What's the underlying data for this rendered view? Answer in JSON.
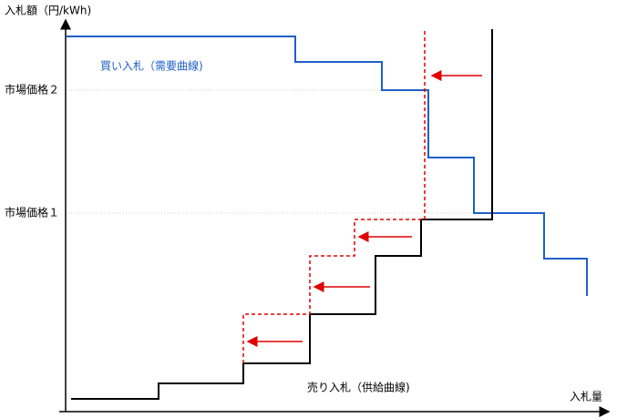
{
  "axes": {
    "y_label": "入札額（円/kWh)",
    "x_label": "入札量"
  },
  "price_levels": [
    "市場価格２",
    "市場価格１"
  ],
  "curves": {
    "demand_label": "買い入札（需要曲線)",
    "supply_label": "売り入札（供給曲線)"
  }
}
